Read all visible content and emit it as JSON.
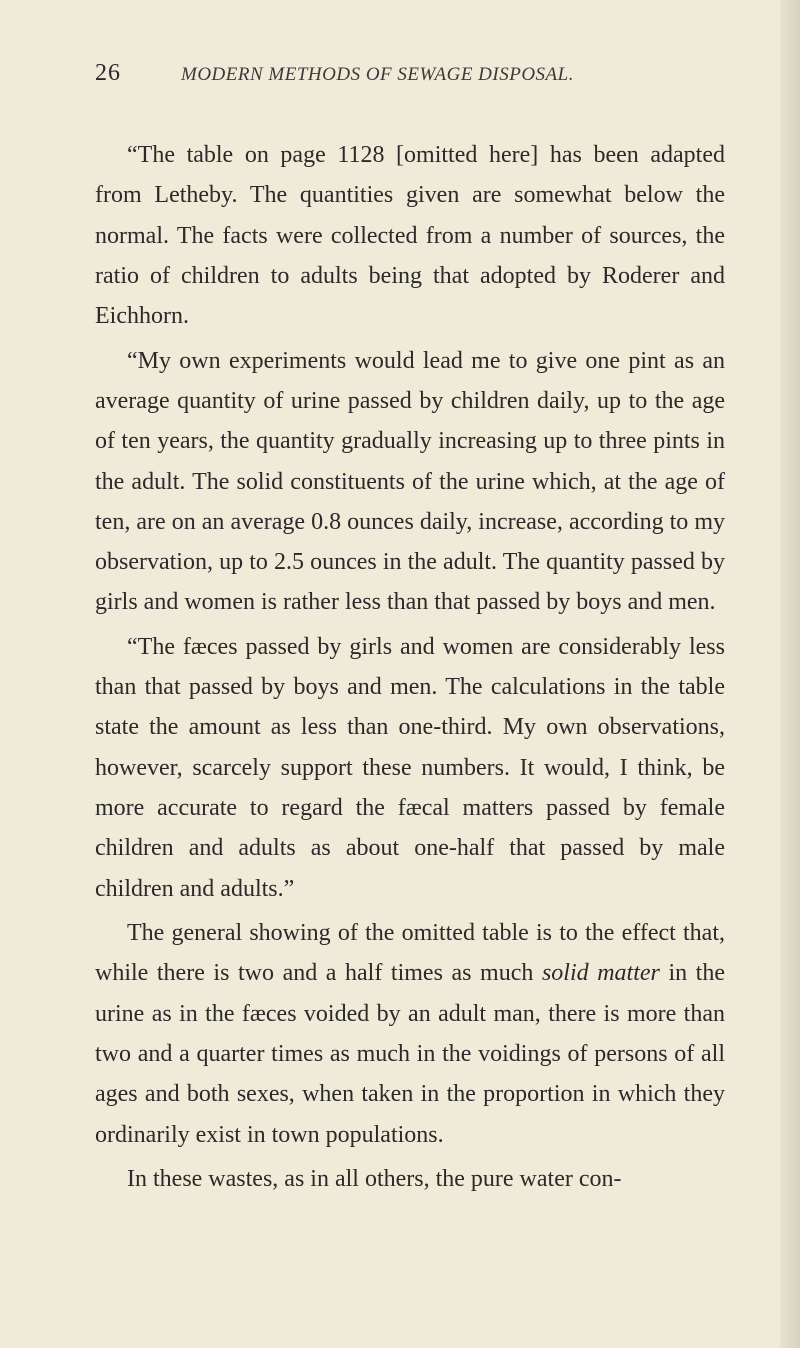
{
  "page": {
    "number": "26",
    "header": "MODERN METHODS OF SEWAGE DISPOSAL."
  },
  "paragraphs": {
    "p1": "“The table on page 1128 [omitted here] has been adapted from Letheby. The quantities given are somewhat below the normal. The facts were collected from a number of sources, the ratio of children to adults being that adopted by Roderer and Eichhorn.",
    "p2": "“My own experiments would lead me to give one pint as an average quantity of urine passed by children daily, up to the age of ten years, the quantity gradually increasing up to three pints in the adult. The solid constituents of the urine which, at the age of ten, are on an average 0.8 ounces daily, increase, according to my observation, up to 2.5 ounces in the adult. The quantity passed by girls and women is rather less than that passed by boys and men.",
    "p3": "“The fæces passed by girls and women are considerably less than that passed by boys and men. The calculations in the table state the amount as less than one-third. My own observations, however, scarcely support these numbers. It would, I think, be more accurate to regard the fæcal matters passed by female children and adults as about one-half that passed by male children and adults.”",
    "p4_part1": "The general showing of the omitted table is to the effect that, while there is two and a half times as much ",
    "p4_italic": "solid matter",
    "p4_part2": " in the urine as in the fæces voided by an adult man, there is more than two and a quarter times as much in the voidings of persons of all ages and both sexes, when taken in the proportion in which they ordinarily exist in town populations.",
    "p5": "In these wastes, as in all others, the pure water con-"
  },
  "colors": {
    "page_bg": "#f0ead8",
    "text": "#2a2a2a",
    "header_text": "#3a3a3a"
  },
  "typography": {
    "body_fontsize": 24,
    "header_fontsize": 19,
    "page_number_fontsize": 24,
    "line_height": 1.68,
    "indent": 32
  }
}
